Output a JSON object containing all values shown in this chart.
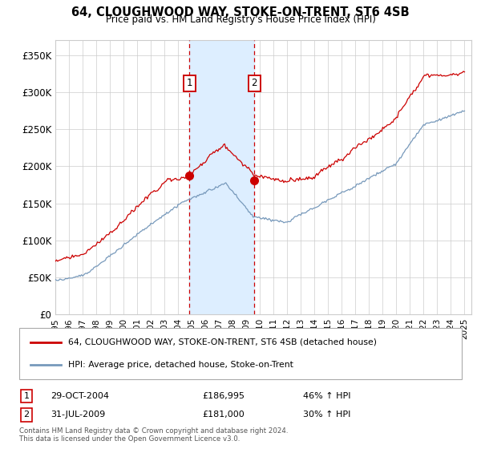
{
  "title": "64, CLOUGHWOOD WAY, STOKE-ON-TRENT, ST6 4SB",
  "subtitle": "Price paid vs. HM Land Registry's House Price Index (HPI)",
  "ylabel_vals": [
    0,
    50000,
    100000,
    150000,
    200000,
    250000,
    300000,
    350000
  ],
  "ylabel_labels": [
    "£0",
    "£50K",
    "£100K",
    "£150K",
    "£200K",
    "£250K",
    "£300K",
    "£350K"
  ],
  "xlim_start": 1995.0,
  "xlim_end": 2025.5,
  "ylim": [
    0,
    370000
  ],
  "sale1_year": 2004.83,
  "sale1_price": 186995,
  "sale2_year": 2009.583,
  "sale2_price": 181000,
  "sale1_date": "29-OCT-2004",
  "sale2_date": "31-JUL-2009",
  "sale1_hpi": "46% ↑ HPI",
  "sale2_hpi": "30% ↑ HPI",
  "red_color": "#cc0000",
  "blue_color": "#7799bb",
  "shade_color": "#ddeeff",
  "grid_color": "#cccccc",
  "footnote_line1": "Contains HM Land Registry data © Crown copyright and database right 2024.",
  "footnote_line2": "This data is licensed under the Open Government Licence v3.0.",
  "legend_line1": "64, CLOUGHWOOD WAY, STOKE-ON-TRENT, ST6 4SB (detached house)",
  "legend_line2": "HPI: Average price, detached house, Stoke-on-Trent",
  "xticks": [
    1995,
    1996,
    1997,
    1998,
    1999,
    2000,
    2001,
    2002,
    2003,
    2004,
    2005,
    2006,
    2007,
    2008,
    2009,
    2010,
    2011,
    2012,
    2013,
    2014,
    2015,
    2016,
    2017,
    2018,
    2019,
    2020,
    2021,
    2022,
    2023,
    2024,
    2025
  ],
  "n_months": 361,
  "hpi_seed": 12,
  "red_seed": 77
}
